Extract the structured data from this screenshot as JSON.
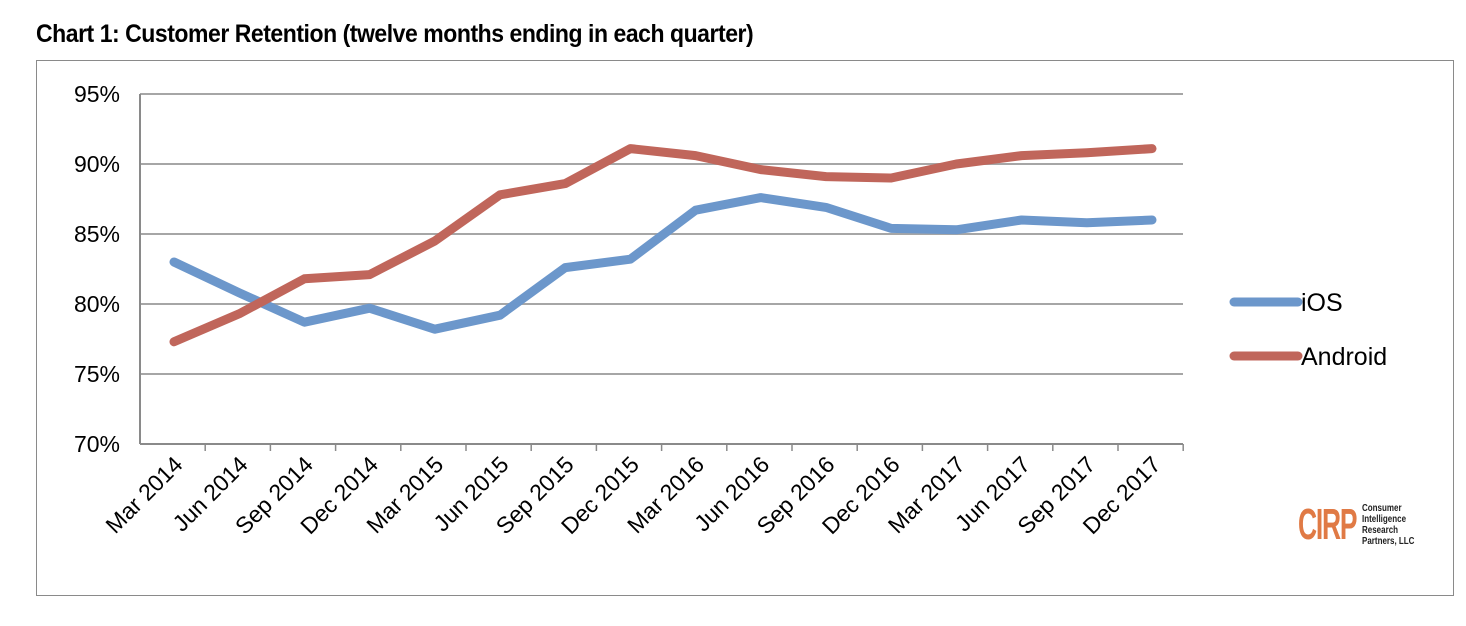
{
  "chart_data": {
    "type": "line",
    "title": "Chart 1: Customer Retention (twelve months ending in each quarter)",
    "xlabel": "",
    "ylabel": "",
    "categories": [
      "Mar 2014",
      "Jun 2014",
      "Sep 2014",
      "Dec 2014",
      "Mar 2015",
      "Jun 2015",
      "Sep 2015",
      "Dec 2015",
      "Mar 2016",
      "Jun 2016",
      "Sep 2016",
      "Dec 2016",
      "Mar 2017",
      "Jun 2017",
      "Sep 2017",
      "Dec 2017"
    ],
    "ylim": [
      70,
      95
    ],
    "yticks": [
      70,
      75,
      80,
      85,
      90,
      95
    ],
    "ytick_labels": [
      "70%",
      "75%",
      "80%",
      "85%",
      "90%",
      "95%"
    ],
    "grid": true,
    "legend_position": "right",
    "series": [
      {
        "name": "iOS",
        "color": "#6c97cb",
        "values": [
          83.0,
          80.8,
          78.7,
          79.7,
          78.2,
          79.2,
          82.6,
          83.2,
          86.7,
          87.6,
          86.9,
          85.4,
          85.3,
          86.0,
          85.8,
          86.0
        ]
      },
      {
        "name": "Android",
        "color": "#c0665b",
        "values": [
          77.3,
          79.3,
          81.8,
          82.1,
          84.5,
          87.8,
          88.6,
          91.1,
          90.6,
          89.6,
          89.1,
          89.0,
          90.0,
          90.6,
          90.8,
          91.1
        ]
      }
    ]
  },
  "logo": {
    "mark": "CIRP",
    "text": [
      "Consumer",
      "Intelligence",
      "Research",
      "Partners, LLC"
    ]
  }
}
